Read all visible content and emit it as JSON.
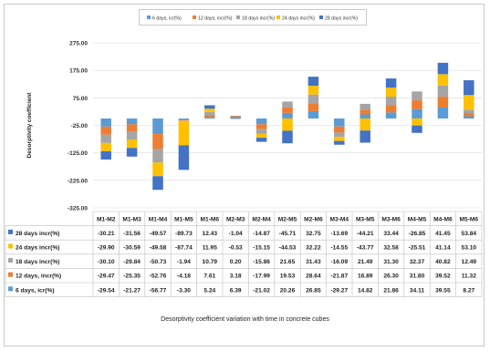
{
  "chart_data": {
    "type": "bar",
    "stacked": true,
    "title": "",
    "caption": "Desorptivity coefficient variation with time in concrete cubes",
    "ylabel": "Desorptivity coefficient",
    "xlabel": "",
    "ylim": [
      -325,
      275
    ],
    "yticks": [
      "275.00",
      "175.00",
      "75.00",
      "-25.00",
      "-125.00",
      "-225.00",
      "-325.00"
    ],
    "ytick_values": [
      275,
      175,
      75,
      -25,
      -125,
      -225,
      -325
    ],
    "grid": true,
    "legend_position": "top",
    "categories": [
      "M1-M2",
      "M1-M3",
      "M1-M4",
      "M1-M5",
      "M1-M6",
      "M2-M3",
      "M2-M4",
      "M2-M5",
      "M2-M6",
      "M3-M4",
      "M3-M5",
      "M3-M6",
      "M4-M5",
      "M4-M6",
      "M5-M6"
    ],
    "series": [
      {
        "name": "6 days, icr(%)",
        "color": "#5b9bd5",
        "values": [
          -29.54,
          -21.27,
          -56.77,
          -3.3,
          5.24,
          6.39,
          -21.02,
          20.26,
          26.85,
          -29.27,
          14.82,
          21.86,
          34.11,
          39.55,
          8.27
        ]
      },
      {
        "name": "12 days, incr(%)",
        "color": "#ed7d31",
        "values": [
          -29.47,
          -25.35,
          -52.76,
          -4.18,
          7.61,
          3.18,
          -17.99,
          19.53,
          28.64,
          -21.87,
          16.89,
          26.3,
          31.8,
          39.52,
          11.32
        ]
      },
      {
        "name": "18 days incr(%)",
        "color": "#a5a5a5",
        "values": [
          -30.1,
          -29.84,
          -50.73,
          -1.94,
          10.79,
          0.2,
          -15.86,
          21.65,
          31.43,
          -16.09,
          21.49,
          31.3,
          32.37,
          40.82,
          12.49
        ]
      },
      {
        "name": "24 days incr(%)",
        "color": "#ffc000",
        "values": [
          -29.9,
          -30.59,
          -49.58,
          -87.74,
          11.95,
          -0.53,
          -15.15,
          -44.53,
          32.22,
          -14.55,
          -43.77,
          32.58,
          -25.51,
          41.14,
          53.1
        ]
      },
      {
        "name": "28 days incr(%)",
        "color": "#4472c4",
        "values": [
          -30.21,
          -31.56,
          -49.57,
          -89.73,
          12.43,
          -1.04,
          -14.87,
          -45.71,
          32.75,
          -13.69,
          -44.21,
          33.44,
          -26.85,
          41.45,
          53.84
        ]
      }
    ],
    "table": {
      "row_labels": [
        "28 days incr(%)",
        "24 days incr(%)",
        "18 days incr(%)",
        "12 days, incr(%)",
        "6 days, icr(%)"
      ],
      "rows": [
        [
          "-30.21",
          "-31.56",
          "-49.57",
          "-89.73",
          "12.43",
          "-1.04",
          "-14.87",
          "-45.71",
          "32.75",
          "-13.69",
          "-44.21",
          "33.44",
          "-26.85",
          "41.45",
          "53.84"
        ],
        [
          "-29.90",
          "-30.59",
          "-49.58",
          "-87.74",
          "11.95",
          "-0.53",
          "-15.15",
          "-44.53",
          "32.22",
          "-14.55",
          "-43.77",
          "32.58",
          "-25.51",
          "41.14",
          "53.10"
        ],
        [
          "-30.10",
          "-29.84",
          "-50.73",
          "-1.94",
          "10.79",
          "0.20",
          "-15.86",
          "21.65",
          "31.43",
          "-16.09",
          "21.49",
          "31.30",
          "32.37",
          "40.82",
          "12.49"
        ],
        [
          "-29.47",
          "-25.35",
          "-52.76",
          "-4.18",
          "7.61",
          "3.18",
          "-17.99",
          "19.53",
          "28.64",
          "-21.87",
          "16.89",
          "26.30",
          "31.80",
          "39.52",
          "11.32"
        ],
        [
          "-29.54",
          "-21.27",
          "-56.77",
          "-3.30",
          "5.24",
          "6.39",
          "-21.02",
          "20.26",
          "26.85",
          "-29.27",
          "14.82",
          "21.86",
          "34.11",
          "39.55",
          "8.27"
        ]
      ]
    }
  }
}
